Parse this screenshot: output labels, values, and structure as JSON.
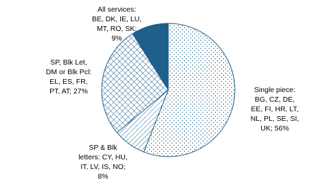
{
  "chart_data": {
    "type": "pie",
    "categories": [
      [
        "Single piece:",
        "BG, CZ, DE,",
        "EE, FI, HR, LT,",
        "NL, PL, SE, SI,",
        "UK; 56%"
      ],
      [
        "SP & Blk",
        "letters: CY, HU,",
        "IT, LV, IS, NO;",
        "8%"
      ],
      [
        "SP, Blk Let,",
        "DM or Blk Pcl:",
        "EL, ES, FR,",
        "PT, AT; 27%"
      ],
      [
        "All services:",
        "BE, DK, IE, LU,",
        "MT, RO, SK;",
        "9%"
      ]
    ],
    "values": [
      56,
      8,
      27,
      9
    ],
    "color": "#1f5f8b",
    "patterns": [
      "dots",
      "hatch",
      "crosshatch",
      "solid"
    ]
  }
}
